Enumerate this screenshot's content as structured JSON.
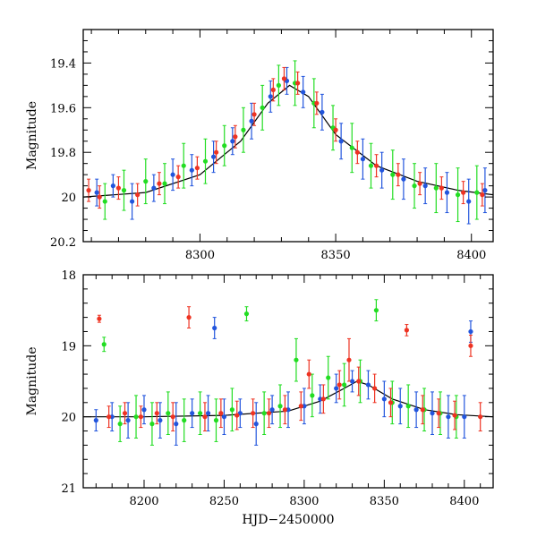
{
  "chart_data": [
    {
      "type": "scatter",
      "title": "",
      "xlabel": "",
      "ylabel": "Magnitude",
      "xlim": [
        8257,
        8408
      ],
      "ylim": [
        20.2,
        19.25
      ],
      "y_inverted": true,
      "grid": false,
      "legend": "none",
      "xticks": [
        {
          "v": 8300,
          "label": "8300"
        },
        {
          "v": 8350,
          "label": "8350"
        },
        {
          "v": 8400,
          "label": "8400"
        }
      ],
      "yticks": [
        {
          "v": 19.4,
          "label": "19.4"
        },
        {
          "v": 19.6,
          "label": "19.6"
        },
        {
          "v": 19.8,
          "label": "19.8"
        },
        {
          "v": 20.0,
          "label": "20"
        },
        {
          "v": 20.2,
          "label": "20.2"
        }
      ],
      "model_curve": {
        "x": [
          8257,
          8280,
          8300,
          8315,
          8325,
          8333,
          8340,
          8350,
          8365,
          8380,
          8395,
          8408
        ],
        "y": [
          20.0,
          19.98,
          19.9,
          19.75,
          19.58,
          19.5,
          19.55,
          19.72,
          19.86,
          19.93,
          19.97,
          19.99
        ]
      },
      "series": [
        {
          "color": "#2255dd",
          "points": [
            {
              "x": 8262,
              "y": 19.98,
              "e": 0.06
            },
            {
              "x": 8268,
              "y": 19.95,
              "e": 0.05
            },
            {
              "x": 8275,
              "y": 20.02,
              "e": 0.08
            },
            {
              "x": 8283,
              "y": 19.96,
              "e": 0.06
            },
            {
              "x": 8290,
              "y": 19.9,
              "e": 0.07
            },
            {
              "x": 8297,
              "y": 19.88,
              "e": 0.07
            },
            {
              "x": 8305,
              "y": 19.82,
              "e": 0.07
            },
            {
              "x": 8312,
              "y": 19.75,
              "e": 0.06
            },
            {
              "x": 8319,
              "y": 19.66,
              "e": 0.08
            },
            {
              "x": 8326,
              "y": 19.55,
              "e": 0.07
            },
            {
              "x": 8332,
              "y": 19.48,
              "e": 0.06
            },
            {
              "x": 8338,
              "y": 19.53,
              "e": 0.07
            },
            {
              "x": 8345,
              "y": 19.62,
              "e": 0.08
            },
            {
              "x": 8352,
              "y": 19.75,
              "e": 0.08
            },
            {
              "x": 8360,
              "y": 19.83,
              "e": 0.09
            },
            {
              "x": 8367,
              "y": 19.88,
              "e": 0.08
            },
            {
              "x": 8375,
              "y": 19.92,
              "e": 0.09
            },
            {
              "x": 8383,
              "y": 19.95,
              "e": 0.08
            },
            {
              "x": 8391,
              "y": 19.98,
              "e": 0.09
            },
            {
              "x": 8399,
              "y": 20.02,
              "e": 0.1
            },
            {
              "x": 8405,
              "y": 19.97,
              "e": 0.1
            }
          ]
        },
        {
          "color": "#22dd22",
          "points": [
            {
              "x": 8265,
              "y": 20.02,
              "e": 0.08
            },
            {
              "x": 8272,
              "y": 19.97,
              "e": 0.09
            },
            {
              "x": 8280,
              "y": 19.93,
              "e": 0.1
            },
            {
              "x": 8287,
              "y": 19.94,
              "e": 0.09
            },
            {
              "x": 8294,
              "y": 19.86,
              "e": 0.1
            },
            {
              "x": 8302,
              "y": 19.84,
              "e": 0.1
            },
            {
              "x": 8309,
              "y": 19.77,
              "e": 0.09
            },
            {
              "x": 8316,
              "y": 19.7,
              "e": 0.1
            },
            {
              "x": 8323,
              "y": 19.6,
              "e": 0.1
            },
            {
              "x": 8329,
              "y": 19.5,
              "e": 0.09
            },
            {
              "x": 8335,
              "y": 19.49,
              "e": 0.1
            },
            {
              "x": 8342,
              "y": 19.58,
              "e": 0.11
            },
            {
              "x": 8349,
              "y": 19.69,
              "e": 0.1
            },
            {
              "x": 8356,
              "y": 19.78,
              "e": 0.11
            },
            {
              "x": 8363,
              "y": 19.86,
              "e": 0.1
            },
            {
              "x": 8371,
              "y": 19.9,
              "e": 0.11
            },
            {
              "x": 8379,
              "y": 19.95,
              "e": 0.1
            },
            {
              "x": 8387,
              "y": 19.96,
              "e": 0.11
            },
            {
              "x": 8395,
              "y": 19.99,
              "e": 0.12
            },
            {
              "x": 8402,
              "y": 19.98,
              "e": 0.12
            }
          ]
        },
        {
          "color": "#ee3322",
          "points": [
            {
              "x": 8259,
              "y": 19.97,
              "e": 0.05
            },
            {
              "x": 8263,
              "y": 20.0,
              "e": 0.05
            },
            {
              "x": 8270,
              "y": 19.96,
              "e": 0.05
            },
            {
              "x": 8277,
              "y": 19.99,
              "e": 0.05
            },
            {
              "x": 8285,
              "y": 19.94,
              "e": 0.05
            },
            {
              "x": 8292,
              "y": 19.91,
              "e": 0.05
            },
            {
              "x": 8299,
              "y": 19.87,
              "e": 0.05
            },
            {
              "x": 8306,
              "y": 19.8,
              "e": 0.05
            },
            {
              "x": 8313,
              "y": 19.73,
              "e": 0.05
            },
            {
              "x": 8320,
              "y": 19.63,
              "e": 0.05
            },
            {
              "x": 8327,
              "y": 19.52,
              "e": 0.05
            },
            {
              "x": 8331,
              "y": 19.47,
              "e": 0.05
            },
            {
              "x": 8336,
              "y": 19.49,
              "e": 0.05
            },
            {
              "x": 8343,
              "y": 19.58,
              "e": 0.05
            },
            {
              "x": 8350,
              "y": 19.7,
              "e": 0.05
            },
            {
              "x": 8358,
              "y": 19.8,
              "e": 0.05
            },
            {
              "x": 8365,
              "y": 19.86,
              "e": 0.05
            },
            {
              "x": 8373,
              "y": 19.9,
              "e": 0.05
            },
            {
              "x": 8381,
              "y": 19.94,
              "e": 0.05
            },
            {
              "x": 8389,
              "y": 19.96,
              "e": 0.05
            },
            {
              "x": 8397,
              "y": 19.98,
              "e": 0.05
            },
            {
              "x": 8404,
              "y": 19.99,
              "e": 0.05
            }
          ]
        }
      ]
    },
    {
      "type": "scatter",
      "title": "",
      "xlabel": "HJD−2450000",
      "ylabel": "Magnitude",
      "xlim": [
        8162,
        8418
      ],
      "ylim": [
        21.0,
        18.0
      ],
      "y_inverted": true,
      "grid": false,
      "legend": "none",
      "xticks": [
        {
          "v": 8200,
          "label": "8200"
        },
        {
          "v": 8250,
          "label": "8250"
        },
        {
          "v": 8300,
          "label": "8300"
        },
        {
          "v": 8350,
          "label": "8350"
        },
        {
          "v": 8400,
          "label": "8400"
        }
      ],
      "yticks": [
        {
          "v": 18,
          "label": "18"
        },
        {
          "v": 19,
          "label": "19"
        },
        {
          "v": 20,
          "label": "20"
        },
        {
          "v": 21,
          "label": "21"
        }
      ],
      "model_curve": {
        "x": [
          8162,
          8200,
          8250,
          8290,
          8310,
          8325,
          8333,
          8340,
          8355,
          8375,
          8395,
          8418
        ],
        "y": [
          20.0,
          20.0,
          19.98,
          19.92,
          19.78,
          19.6,
          19.5,
          19.55,
          19.75,
          19.9,
          19.97,
          20.0
        ]
      },
      "series": [
        {
          "color": "#2255dd",
          "points": [
            {
              "x": 8170,
              "y": 20.05,
              "e": 0.15
            },
            {
              "x": 8180,
              "y": 20.0,
              "e": 0.2
            },
            {
              "x": 8190,
              "y": 20.05,
              "e": 0.25
            },
            {
              "x": 8200,
              "y": 19.9,
              "e": 0.2
            },
            {
              "x": 8210,
              "y": 20.05,
              "e": 0.25
            },
            {
              "x": 8220,
              "y": 20.1,
              "e": 0.3
            },
            {
              "x": 8230,
              "y": 19.95,
              "e": 0.2
            },
            {
              "x": 8240,
              "y": 19.95,
              "e": 0.25
            },
            {
              "x": 8244,
              "y": 18.75,
              "e": 0.15
            },
            {
              "x": 8250,
              "y": 20.0,
              "e": 0.25
            },
            {
              "x": 8260,
              "y": 19.95,
              "e": 0.2
            },
            {
              "x": 8270,
              "y": 20.1,
              "e": 0.3
            },
            {
              "x": 8280,
              "y": 19.9,
              "e": 0.2
            },
            {
              "x": 8290,
              "y": 19.9,
              "e": 0.25
            },
            {
              "x": 8300,
              "y": 19.85,
              "e": 0.25
            },
            {
              "x": 8310,
              "y": 19.75,
              "e": 0.2
            },
            {
              "x": 8320,
              "y": 19.6,
              "e": 0.2
            },
            {
              "x": 8330,
              "y": 19.5,
              "e": 0.15
            },
            {
              "x": 8340,
              "y": 19.55,
              "e": 0.2
            },
            {
              "x": 8350,
              "y": 19.75,
              "e": 0.25
            },
            {
              "x": 8360,
              "y": 19.85,
              "e": 0.25
            },
            {
              "x": 8370,
              "y": 19.9,
              "e": 0.25
            },
            {
              "x": 8380,
              "y": 19.95,
              "e": 0.3
            },
            {
              "x": 8390,
              "y": 20.0,
              "e": 0.3
            },
            {
              "x": 8400,
              "y": 20.0,
              "e": 0.3
            },
            {
              "x": 8404,
              "y": 18.8,
              "e": 0.15
            }
          ]
        },
        {
          "color": "#22dd22",
          "points": [
            {
              "x": 8175,
              "y": 18.98,
              "e": 0.1
            },
            {
              "x": 8185,
              "y": 20.1,
              "e": 0.25
            },
            {
              "x": 8195,
              "y": 20.0,
              "e": 0.3
            },
            {
              "x": 8205,
              "y": 20.1,
              "e": 0.3
            },
            {
              "x": 8215,
              "y": 19.95,
              "e": 0.3
            },
            {
              "x": 8225,
              "y": 20.05,
              "e": 0.3
            },
            {
              "x": 8235,
              "y": 19.95,
              "e": 0.3
            },
            {
              "x": 8245,
              "y": 20.05,
              "e": 0.3
            },
            {
              "x": 8255,
              "y": 19.9,
              "e": 0.3
            },
            {
              "x": 8264,
              "y": 18.55,
              "e": 0.1
            },
            {
              "x": 8275,
              "y": 19.95,
              "e": 0.3
            },
            {
              "x": 8285,
              "y": 19.85,
              "e": 0.3
            },
            {
              "x": 8295,
              "y": 19.2,
              "e": 0.3
            },
            {
              "x": 8305,
              "y": 19.7,
              "e": 0.3
            },
            {
              "x": 8315,
              "y": 19.45,
              "e": 0.3
            },
            {
              "x": 8325,
              "y": 19.55,
              "e": 0.3
            },
            {
              "x": 8335,
              "y": 19.5,
              "e": 0.3
            },
            {
              "x": 8345,
              "y": 18.5,
              "e": 0.15
            },
            {
              "x": 8355,
              "y": 19.8,
              "e": 0.3
            },
            {
              "x": 8365,
              "y": 19.85,
              "e": 0.3
            },
            {
              "x": 8375,
              "y": 19.9,
              "e": 0.3
            },
            {
              "x": 8385,
              "y": 19.95,
              "e": 0.3
            },
            {
              "x": 8395,
              "y": 20.0,
              "e": 0.3
            }
          ]
        },
        {
          "color": "#ee3322",
          "points": [
            {
              "x": 8172,
              "y": 18.62,
              "e": 0.05
            },
            {
              "x": 8178,
              "y": 20.0,
              "e": 0.15
            },
            {
              "x": 8188,
              "y": 19.95,
              "e": 0.15
            },
            {
              "x": 8198,
              "y": 20.0,
              "e": 0.15
            },
            {
              "x": 8208,
              "y": 19.95,
              "e": 0.15
            },
            {
              "x": 8218,
              "y": 20.0,
              "e": 0.2
            },
            {
              "x": 8228,
              "y": 18.6,
              "e": 0.15
            },
            {
              "x": 8238,
              "y": 20.0,
              "e": 0.2
            },
            {
              "x": 8248,
              "y": 19.95,
              "e": 0.2
            },
            {
              "x": 8258,
              "y": 19.98,
              "e": 0.2
            },
            {
              "x": 8268,
              "y": 19.95,
              "e": 0.2
            },
            {
              "x": 8278,
              "y": 19.95,
              "e": 0.2
            },
            {
              "x": 8288,
              "y": 19.9,
              "e": 0.2
            },
            {
              "x": 8298,
              "y": 19.85,
              "e": 0.2
            },
            {
              "x": 8303,
              "y": 19.4,
              "e": 0.2
            },
            {
              "x": 8312,
              "y": 19.75,
              "e": 0.2
            },
            {
              "x": 8322,
              "y": 19.55,
              "e": 0.2
            },
            {
              "x": 8328,
              "y": 19.2,
              "e": 0.3
            },
            {
              "x": 8334,
              "y": 19.5,
              "e": 0.2
            },
            {
              "x": 8344,
              "y": 19.6,
              "e": 0.2
            },
            {
              "x": 8354,
              "y": 19.8,
              "e": 0.2
            },
            {
              "x": 8364,
              "y": 18.78,
              "e": 0.08
            },
            {
              "x": 8374,
              "y": 19.9,
              "e": 0.2
            },
            {
              "x": 8384,
              "y": 19.95,
              "e": 0.2
            },
            {
              "x": 8394,
              "y": 19.98,
              "e": 0.2
            },
            {
              "x": 8404,
              "y": 19.0,
              "e": 0.15
            },
            {
              "x": 8410,
              "y": 20.0,
              "e": 0.2
            }
          ]
        }
      ]
    }
  ]
}
